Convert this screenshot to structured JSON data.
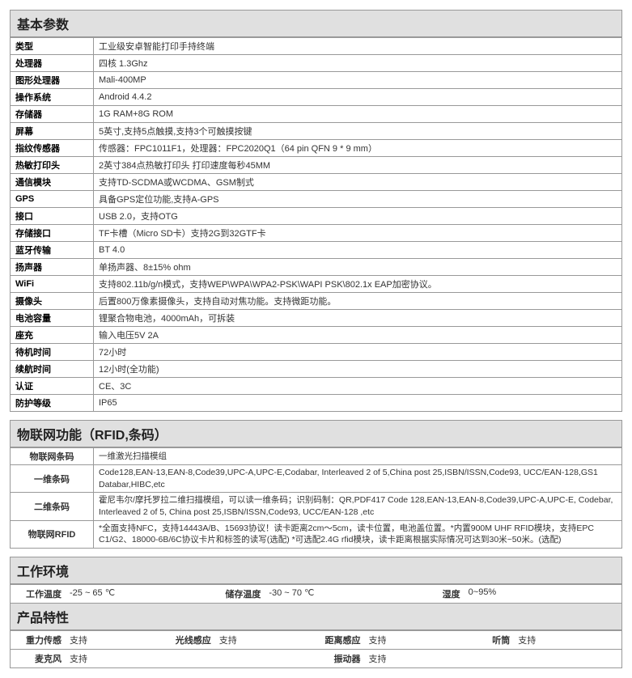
{
  "sections": {
    "basic": {
      "title": "基本参数"
    },
    "iot": {
      "title": "物联网功能（RFID,条码）"
    },
    "env": {
      "title": "工作环境"
    },
    "feat": {
      "title": "产品特性"
    }
  },
  "basic_rows": [
    {
      "label": "类型",
      "value": "工业级安卓智能打印手持终端"
    },
    {
      "label": "处理器",
      "value": "四核 1.3Ghz"
    },
    {
      "label": "图形处理器",
      "value": "Mali-400MP"
    },
    {
      "label": "操作系统",
      "value": "Android 4.4.2"
    },
    {
      "label": "存储器",
      "value": "1G RAM+8G ROM"
    },
    {
      "label": "屏幕",
      "value": "5英寸,支持5点触摸,支持3个可触摸按键"
    },
    {
      "label": "指纹传感器",
      "value": "传感器：FPC1011F1，处理器：FPC2020Q1（64 pin QFN 9 * 9 mm）"
    },
    {
      "label": "热敏打印头",
      "value": "2英寸384点热敏打印头 打印速度每秒45MM"
    },
    {
      "label": "通信模块",
      "value": "支持TD-SCDMA或WCDMA、GSM制式"
    },
    {
      "label": "GPS",
      "value": "具备GPS定位功能,支持A-GPS"
    },
    {
      "label": "接口",
      "value": "USB 2.0，支持OTG"
    },
    {
      "label": "存储接口",
      "value": "TF卡槽（Micro SD卡）支持2G到32GTF卡"
    },
    {
      "label": "蓝牙传输",
      "value": "BT 4.0"
    },
    {
      "label": "扬声器",
      "value": "单扬声器、8±15% ohm"
    },
    {
      "label": "WiFi",
      "value": "支持802.11b/g/n模式，支持WEP\\WPA\\WPA2-PSK\\WAPI PSK\\802.1x EAP加密协议。"
    },
    {
      "label": "摄像头",
      "value": "后置800万像素摄像头，支持自动对焦功能。支持微距功能。"
    },
    {
      "label": "电池容量",
      "value": "锂聚合物电池，4000mAh，可拆装"
    },
    {
      "label": "座充",
      "value": "输入电压5V 2A"
    },
    {
      "label": "待机时间",
      "value": "72小时"
    },
    {
      "label": "续航时间",
      "value": "12小时(全功能)"
    },
    {
      "label": "认证",
      "value": "CE、3C"
    },
    {
      "label": "防护等级",
      "value": "IP65"
    }
  ],
  "iot_rows": [
    {
      "label": "物联网条码",
      "value": "一维激光扫描模组"
    },
    {
      "label": "一维条码",
      "value": "Code128,EAN-13,EAN-8,Code39,UPC-A,UPC-E,Codabar, Interleaved 2 of 5,China post 25,ISBN/ISSN,Code93, UCC/EAN-128,GS1 Databar,HIBC,etc"
    },
    {
      "label": "二维条码",
      "value": "霍尼韦尔/摩托罗拉二维扫描模组，可以读一维条码；识别码制：QR,PDF417 Code 128,EAN-13,EAN-8,Code39,UPC-A,UPC-E, Codebar, Interleaved 2 of 5, China post 25,ISBN/ISSN,Code93, UCC/EAN-128 ,etc"
    },
    {
      "label": "物联网RFID",
      "value": "*全面支持NFC，支持14443A/B、15693协议！读卡距离2cm～5cm，读卡位置，电池盖位置。*内置900M UHF RFID模块，支持EPC C1/G2、18000-6B/6C协议卡片和标签的读写(选配)    *可选配2.4G rfid模块，读卡距离根据实际情况可达到30米~50米。(选配)"
    }
  ],
  "env_items": [
    {
      "label": "工作温度",
      "value": "-25 ~ 65 ℃"
    },
    {
      "label": "储存温度",
      "value": "-30 ~ 70 ℃"
    },
    {
      "label": "湿度",
      "value": "0~95%"
    }
  ],
  "feat_items_row1": [
    {
      "label": "重力传感",
      "value": "支持"
    },
    {
      "label": "光线感应",
      "value": "支持"
    },
    {
      "label": "距离感应",
      "value": "支持"
    },
    {
      "label": "听筒",
      "value": "支持"
    }
  ],
  "feat_items_row2": [
    {
      "label": "麦克风",
      "value": "支持"
    },
    {
      "label": "振动器",
      "value": "支持"
    }
  ]
}
